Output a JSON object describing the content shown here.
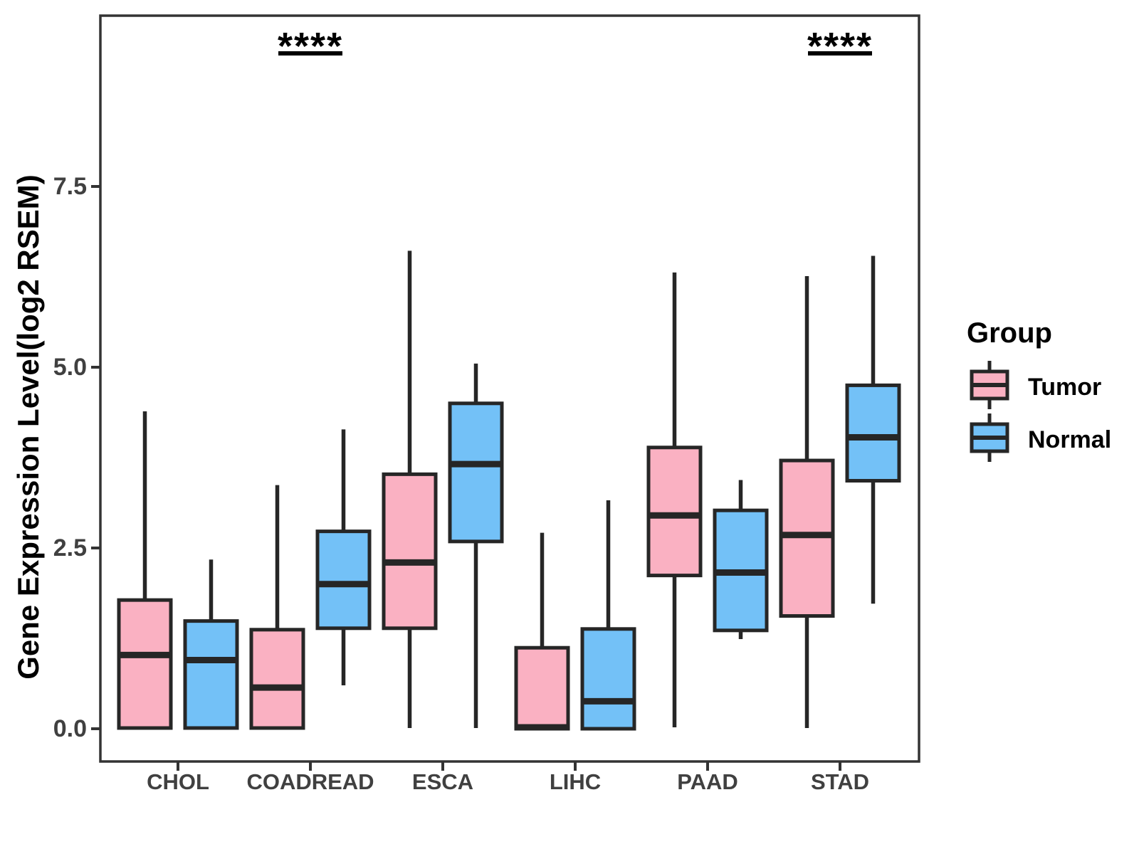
{
  "chart_data": {
    "type": "boxplot",
    "title": "",
    "ylabel": "Gene Expression Level(log2 RSEM)",
    "xlabel": "",
    "categories": [
      "CHOL",
      "COADREAD",
      "ESCA",
      "LIHC",
      "PAAD",
      "STAD"
    ],
    "ytick_labels": [
      "0.0",
      "2.5",
      "5.0",
      "7.5"
    ],
    "ytick_values": [
      0,
      2.5,
      5,
      7.5
    ],
    "ylim": [
      -0.45,
      9.85
    ],
    "grid": "off",
    "legend": {
      "title": "Group",
      "position": "right"
    },
    "series": [
      {
        "name": "Tumor",
        "color": "#FAB1C2",
        "boxes": [
          {
            "category": "CHOL",
            "min": 0,
            "q1": 0.01,
            "median": 1.02,
            "q3": 1.78,
            "max": 4.39
          },
          {
            "category": "COADREAD",
            "min": 0,
            "q1": 0.01,
            "median": 0.57,
            "q3": 1.37,
            "max": 3.37
          },
          {
            "category": "ESCA",
            "min": 0.01,
            "q1": 1.39,
            "median": 2.3,
            "q3": 3.52,
            "max": 6.61
          },
          {
            "category": "LIHC",
            "min": 0,
            "q1": 0,
            "median": 0.02,
            "q3": 1.12,
            "max": 2.71
          },
          {
            "category": "PAAD",
            "min": 0.02,
            "q1": 2.12,
            "median": 2.95,
            "q3": 3.89,
            "max": 6.31
          },
          {
            "category": "STAD",
            "min": 0.01,
            "q1": 1.56,
            "median": 2.68,
            "q3": 3.71,
            "max": 6.26
          }
        ]
      },
      {
        "name": "Normal",
        "color": "#73C1F7",
        "boxes": [
          {
            "category": "CHOL",
            "min": 0,
            "q1": 0.01,
            "median": 0.95,
            "q3": 1.49,
            "max": 2.34
          },
          {
            "category": "COADREAD",
            "min": 0.6,
            "q1": 1.39,
            "median": 2.0,
            "q3": 2.73,
            "max": 4.14
          },
          {
            "category": "ESCA",
            "min": 0.01,
            "q1": 2.59,
            "median": 3.66,
            "q3": 4.5,
            "max": 5.05
          },
          {
            "category": "LIHC",
            "min": 0,
            "q1": 0,
            "median": 0.38,
            "q3": 1.38,
            "max": 3.16
          },
          {
            "category": "PAAD",
            "min": 1.24,
            "q1": 1.36,
            "median": 2.16,
            "q3": 3.02,
            "max": 3.44
          },
          {
            "category": "STAD",
            "min": 1.73,
            "q1": 3.43,
            "median": 4.03,
            "q3": 4.75,
            "max": 6.54
          }
        ]
      }
    ],
    "significance": [
      {
        "category": "COADREAD",
        "label": "****"
      },
      {
        "category": "STAD",
        "label": "****"
      }
    ],
    "colors": {
      "box_border": "#262626",
      "panel_border": "#333333",
      "axis_text": "#404040",
      "sig_bar": "#000000"
    }
  }
}
